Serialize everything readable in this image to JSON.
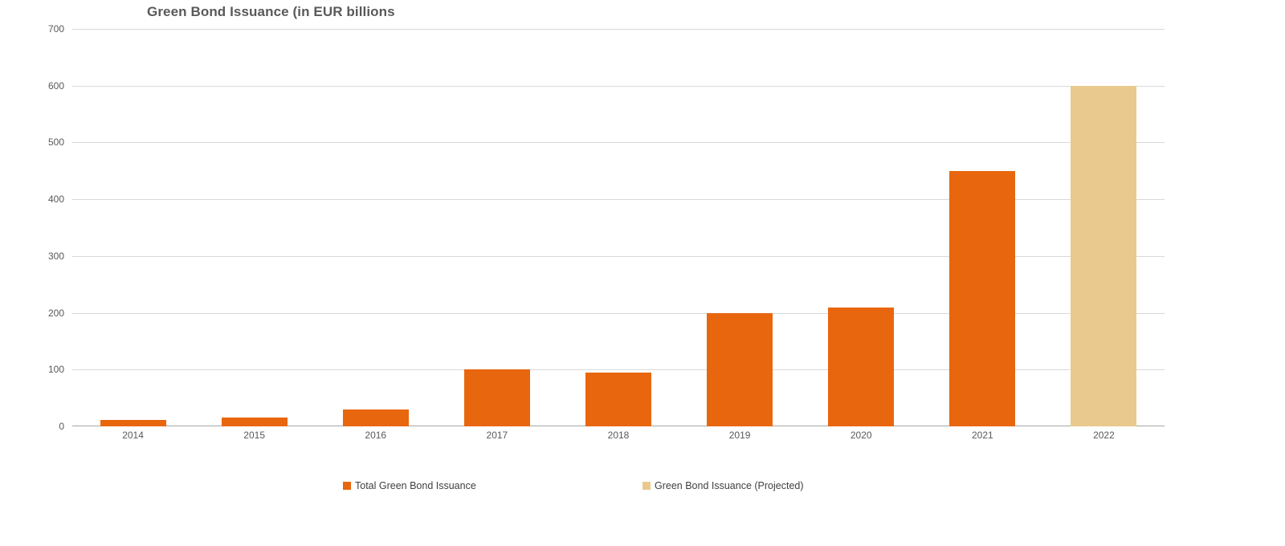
{
  "chart_data": {
    "type": "bar",
    "title": "Green Bond Issuance (in EUR billions",
    "categories": [
      "2014",
      "2015",
      "2016",
      "2017",
      "2018",
      "2019",
      "2020",
      "2021",
      "2022"
    ],
    "series": [
      {
        "name": "Total Green Bond Issuance",
        "color": "#E8670E",
        "values": [
          12,
          15,
          30,
          100,
          95,
          200,
          210,
          450,
          null
        ]
      },
      {
        "name": "Green Bond Issuance (Projected)",
        "color": "#E9C98E",
        "values": [
          null,
          null,
          null,
          null,
          null,
          null,
          null,
          null,
          600
        ]
      }
    ],
    "xlabel": "",
    "ylabel": "",
    "ylim": [
      0,
      700
    ],
    "ytick_step": 100,
    "grid": true,
    "legend_position": "bottom"
  },
  "colors": {
    "bar_actual": "#E8670E",
    "bar_projected": "#E9C98E",
    "gridline": "#D9D9D9",
    "axis_line": "#A6A6A6",
    "tick_label": "#595959",
    "title_text": "#595959",
    "legend_text": "#404040",
    "background": "#FFFFFF"
  }
}
